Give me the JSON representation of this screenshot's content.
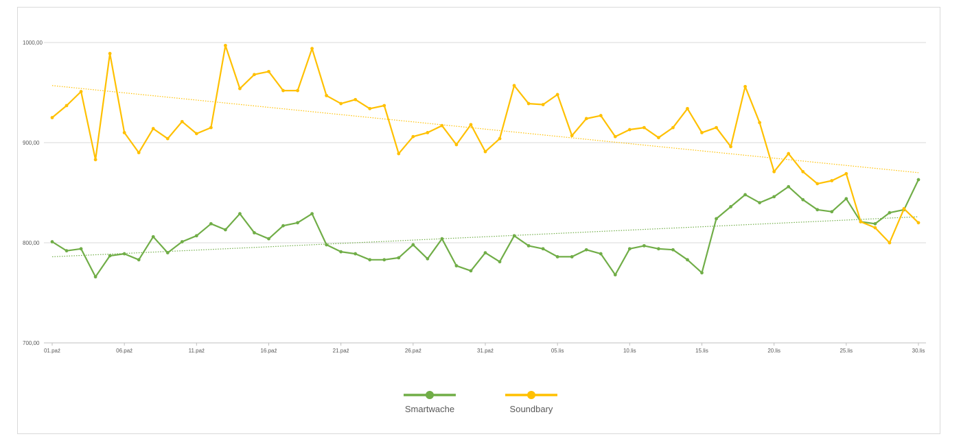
{
  "chart_data": {
    "type": "line",
    "title": "",
    "xlabel": "",
    "ylabel": "",
    "ylim": [
      700,
      1000
    ],
    "yticks": [
      "700,00",
      "800,00",
      "900,00",
      "1000,00"
    ],
    "ytick_values": [
      700,
      800,
      900,
      1000
    ],
    "x_tick_labels": [
      "01.paź",
      "06.paź",
      "11.paź",
      "16.paź",
      "21.paź",
      "26.paź",
      "31.paź",
      "05.lis",
      "10.lis",
      "15.lis",
      "20.lis",
      "25.lis",
      "30.lis"
    ],
    "x_tick_indices": [
      0,
      5,
      10,
      15,
      20,
      25,
      30,
      35,
      40,
      45,
      50,
      55,
      60
    ],
    "grid": "horizontal",
    "legend_position": "bottom",
    "trendlines": true,
    "series": [
      {
        "name": "Smartwache",
        "color": "#70ad47",
        "values": [
          801,
          792,
          794,
          766,
          787,
          789,
          783,
          806,
          790,
          801,
          807,
          819,
          813,
          829,
          810,
          804,
          817,
          820,
          829,
          798,
          791,
          789,
          783,
          783,
          785,
          798,
          784,
          804,
          777,
          772,
          790,
          781,
          807,
          797,
          794,
          786,
          786,
          793,
          789,
          768,
          794,
          797,
          794,
          793,
          783,
          770,
          824,
          836,
          848,
          840,
          846,
          856,
          843,
          833,
          831,
          844,
          821,
          819,
          830,
          833,
          863
        ],
        "trend": [
          786,
          826
        ]
      },
      {
        "name": "Soundbary",
        "color": "#ffc000",
        "values": [
          925,
          937,
          951,
          883,
          989,
          910,
          890,
          914,
          904,
          921,
          909,
          915,
          997,
          954,
          968,
          971,
          952,
          952,
          994,
          947,
          939,
          943,
          934,
          937,
          889,
          906,
          910,
          917,
          898,
          918,
          891,
          904,
          957,
          939,
          938,
          948,
          907,
          924,
          927,
          906,
          913,
          915,
          905,
          915,
          934,
          910,
          915,
          896,
          956,
          920,
          871,
          889,
          871,
          859,
          862,
          869,
          821,
          815,
          800,
          834,
          820
        ],
        "trend": [
          957,
          870
        ]
      }
    ]
  }
}
